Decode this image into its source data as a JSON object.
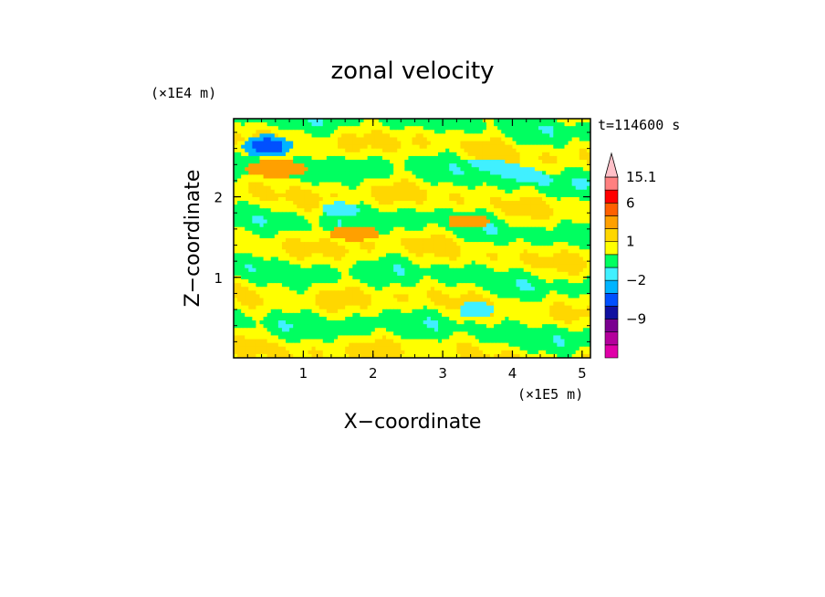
{
  "chart_data": {
    "type": "heatmap",
    "title": "zonal velocity",
    "xlabel": "X−coordinate",
    "ylabel": "Z−coordinate",
    "x_unit": "(×1E5 m)",
    "y_unit": "(×1E4 m)",
    "time_label": "t=114600 s",
    "xlim": [
      0,
      5.12
    ],
    "ylim": [
      0,
      2.97
    ],
    "x_ticks": [
      1,
      2,
      3,
      4,
      5
    ],
    "x_tick_labels": [
      "1",
      "2",
      "3",
      "4",
      "5"
    ],
    "y_ticks": [
      1,
      2
    ],
    "y_tick_labels": [
      "1",
      "2"
    ],
    "colorbar": {
      "levels": [
        -15,
        -12,
        -9,
        -6,
        -3,
        -2,
        -1,
        0,
        1,
        2,
        3,
        6,
        9,
        12,
        15.1
      ],
      "tick_labels": [
        "15.1",
        "6",
        "1",
        "−2",
        "−9"
      ],
      "tick_values": [
        15.1,
        6,
        1,
        -2,
        -9
      ],
      "colors": [
        "#e000a8",
        "#b4009c",
        "#7a0090",
        "#1010a0",
        "#0050ff",
        "#00b4ff",
        "#40f0ff",
        "#00ff60",
        "#ffff00",
        "#ffd700",
        "#ffa000",
        "#ff6000",
        "#ff0000",
        "#ff8080",
        "#ffc0c8"
      ],
      "extend": "max"
    },
    "field_pattern": "banded: green/yellow horizontal bands with orange and cyan streaks, blue minimum near top-left"
  }
}
